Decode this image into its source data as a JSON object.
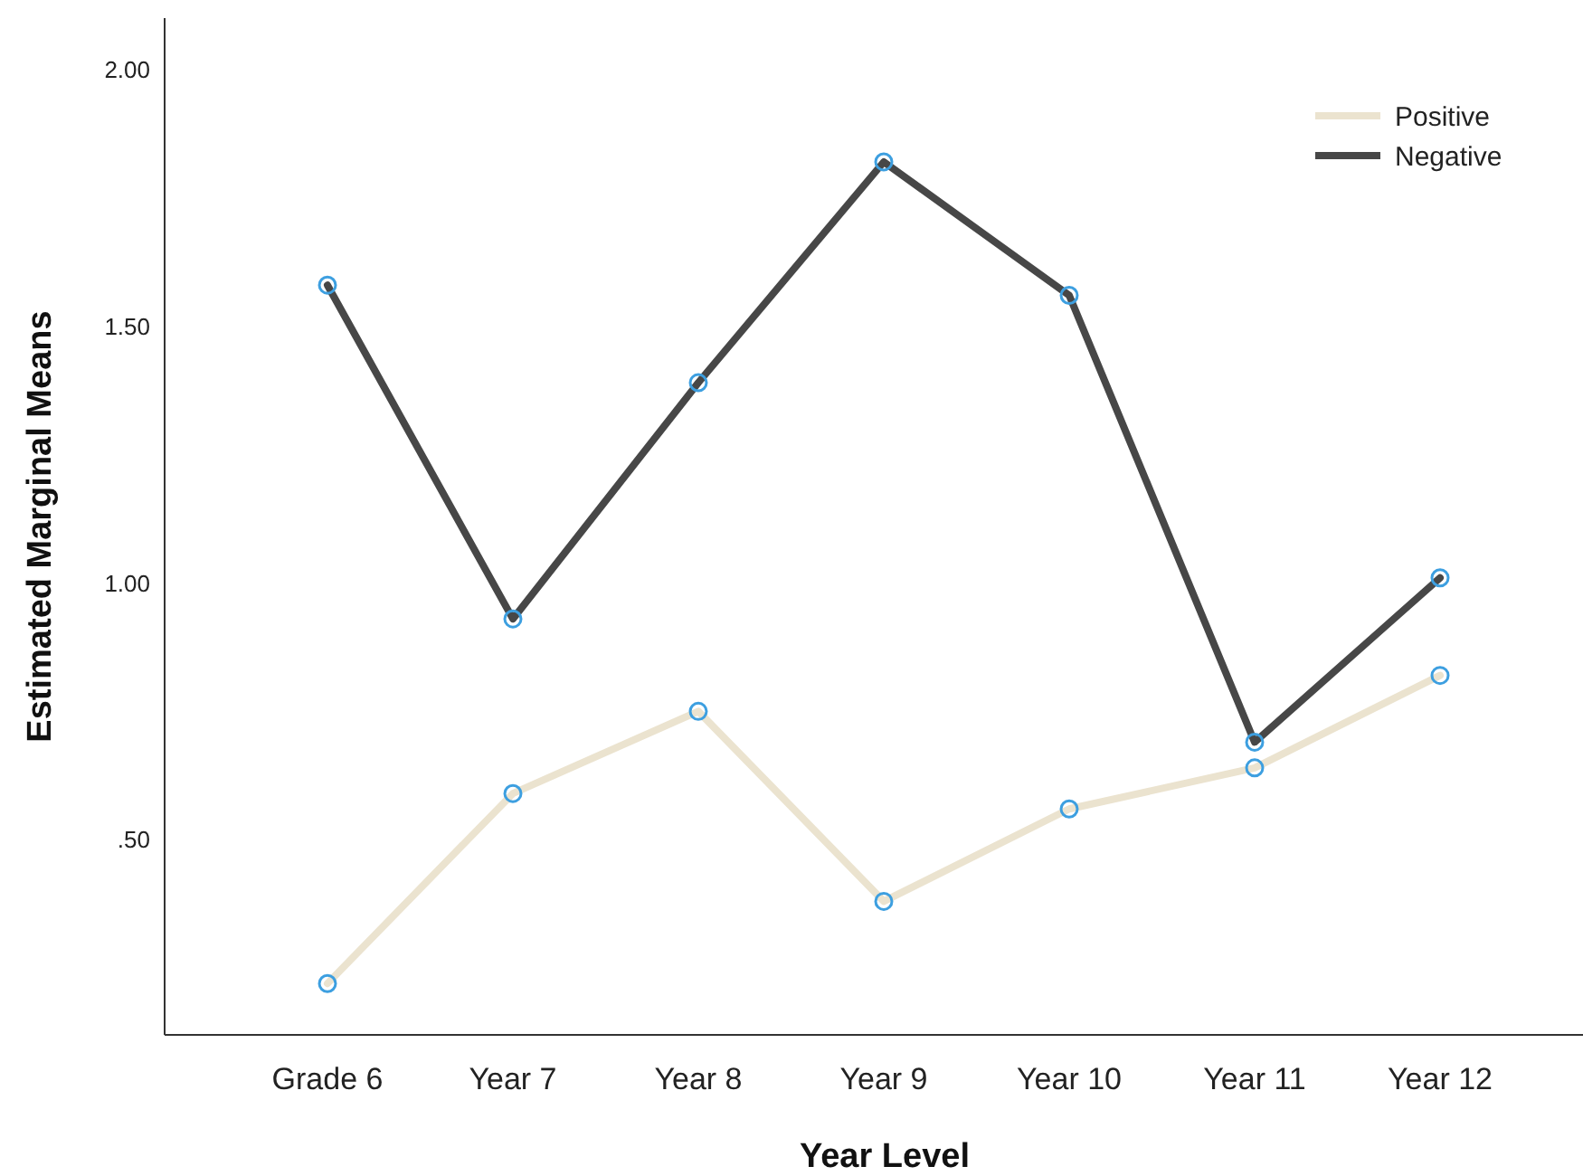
{
  "chart_data": {
    "type": "line",
    "xlabel": "Year Level",
    "ylabel": "Estimated Marginal Means",
    "categories": [
      "Grade 6",
      "Year 7",
      "Year 8",
      "Year 9",
      "Year 10",
      "Year 11",
      "Year 12"
    ],
    "series": [
      {
        "name": "Positive",
        "color": "#ebe3cf",
        "values": [
          0.22,
          0.59,
          0.75,
          0.38,
          0.56,
          0.64,
          0.82
        ]
      },
      {
        "name": "Negative",
        "color": "#474747",
        "values": [
          1.58,
          0.93,
          1.39,
          1.82,
          1.56,
          0.69,
          1.01
        ]
      }
    ],
    "ylim": [
      0.12,
      2.1
    ],
    "yticks": [
      {
        "value": 0.5,
        "label": ".50"
      },
      {
        "value": 1,
        "label": "1.00"
      },
      {
        "value": 1.5,
        "label": "1.50"
      },
      {
        "value": 2,
        "label": "2.00"
      }
    ],
    "grid": false,
    "legend": "top right",
    "marker": "circle",
    "line_style": "solid"
  }
}
